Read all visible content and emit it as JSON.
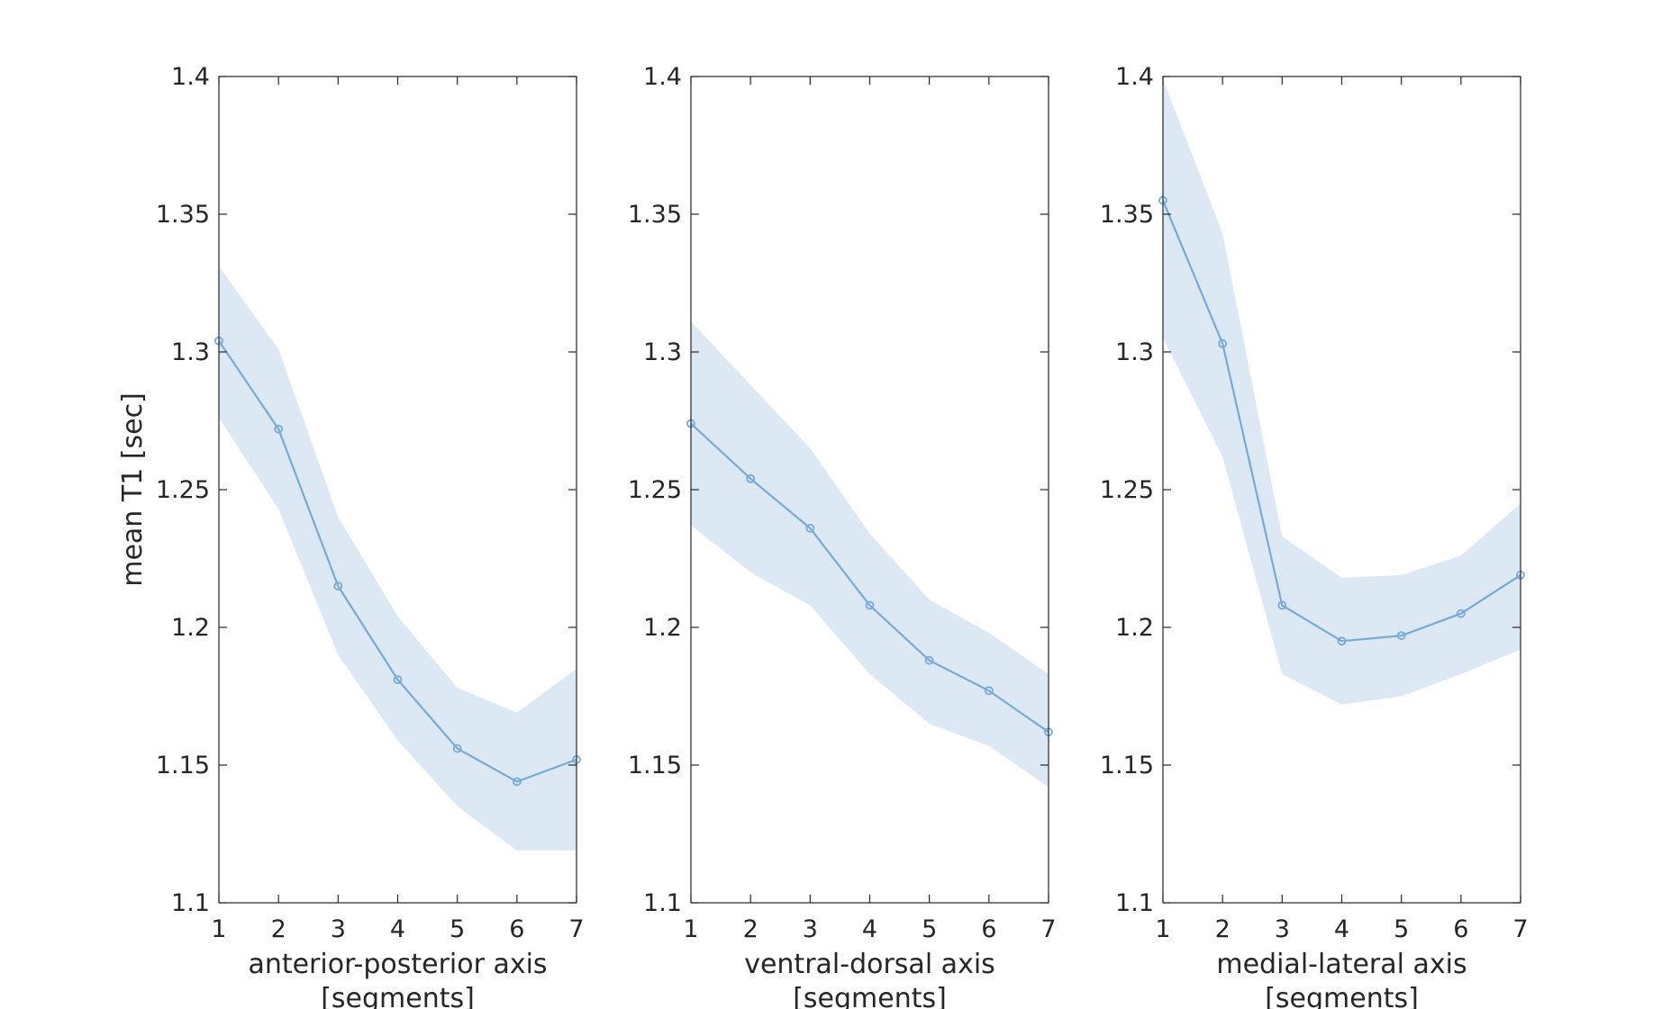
{
  "chart_data": [
    {
      "type": "line",
      "xlabel": [
        "anterior-posterior axis",
        "[segments]"
      ],
      "ylabel": "mean T1 [sec]",
      "xlim": [
        1,
        7
      ],
      "ylim": [
        1.1,
        1.4
      ],
      "xticks": [
        "1",
        "2",
        "3",
        "4",
        "5",
        "6",
        "7"
      ],
      "yticks": [
        "1.1",
        "1.15",
        "1.2",
        "1.25",
        "1.3",
        "1.35",
        "1.4"
      ],
      "grid": false,
      "series": [
        {
          "x": [
            1,
            2,
            3,
            4,
            5,
            6,
            7
          ],
          "values": [
            1.304,
            1.272,
            1.215,
            1.181,
            1.156,
            1.144,
            1.152
          ],
          "band_upper": [
            1.331,
            1.301,
            1.24,
            1.204,
            1.178,
            1.169,
            1.185
          ],
          "band_lower": [
            1.276,
            1.243,
            1.19,
            1.159,
            1.135,
            1.119,
            1.119
          ]
        }
      ]
    },
    {
      "type": "line",
      "xlabel": [
        "ventral-dorsal axis",
        "[segments]"
      ],
      "ylabel": "",
      "xlim": [
        1,
        7
      ],
      "ylim": [
        1.1,
        1.4
      ],
      "xticks": [
        "1",
        "2",
        "3",
        "4",
        "5",
        "6",
        "7"
      ],
      "yticks": [
        "1.1",
        "1.15",
        "1.2",
        "1.25",
        "1.3",
        "1.35",
        "1.4"
      ],
      "grid": false,
      "series": [
        {
          "x": [
            1,
            2,
            3,
            4,
            5,
            6,
            7
          ],
          "values": [
            1.274,
            1.254,
            1.236,
            1.208,
            1.188,
            1.177,
            1.162
          ],
          "band_upper": [
            1.311,
            1.288,
            1.265,
            1.234,
            1.21,
            1.198,
            1.183
          ],
          "band_lower": [
            1.237,
            1.22,
            1.208,
            1.183,
            1.165,
            1.157,
            1.142
          ]
        }
      ]
    },
    {
      "type": "line",
      "xlabel": [
        "medial-lateral axis",
        "[segments]"
      ],
      "ylabel": "",
      "xlim": [
        1,
        7
      ],
      "ylim": [
        1.1,
        1.4
      ],
      "xticks": [
        "1",
        "2",
        "3",
        "4",
        "5",
        "6",
        "7"
      ],
      "yticks": [
        "1.1",
        "1.15",
        "1.2",
        "1.25",
        "1.3",
        "1.35",
        "1.4"
      ],
      "grid": false,
      "series": [
        {
          "x": [
            1,
            2,
            3,
            4,
            5,
            6,
            7
          ],
          "values": [
            1.355,
            1.303,
            1.208,
            1.195,
            1.197,
            1.205,
            1.219
          ],
          "band_upper": [
            1.399,
            1.343,
            1.233,
            1.218,
            1.219,
            1.226,
            1.245
          ],
          "band_lower": [
            1.305,
            1.262,
            1.183,
            1.172,
            1.175,
            1.183,
            1.192
          ]
        }
      ]
    }
  ],
  "colors": {
    "line": "#77aad4",
    "band": "#dce8f4",
    "axes": "#262626",
    "text": "#262626"
  }
}
